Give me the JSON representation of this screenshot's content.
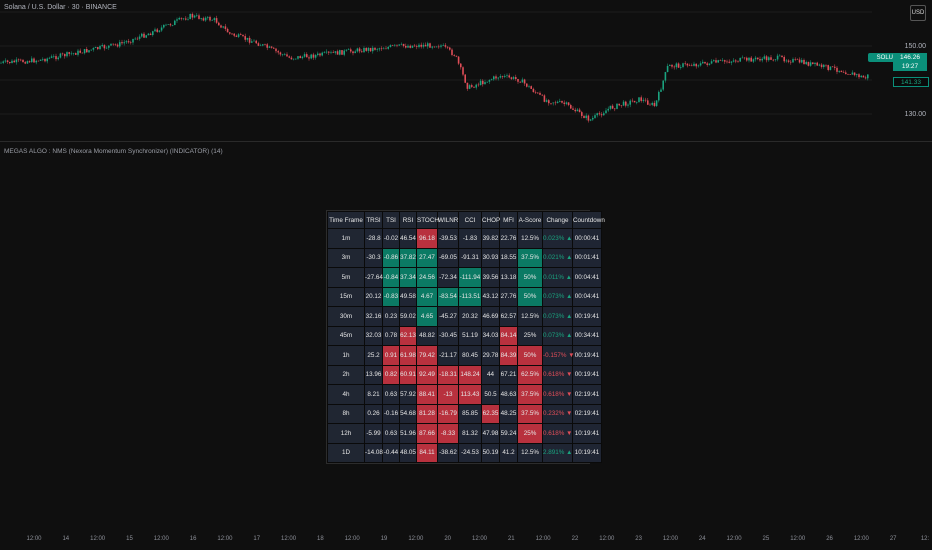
{
  "title": "Solana / U.S. Dollar · 30 · BINANCE",
  "currency": "USD",
  "symbol_tag": "SOLUSD",
  "price_axis": {
    "labels": [
      "150.00",
      "130.00"
    ],
    "last_price": "146.26",
    "countdown": "19:27",
    "other_price": "141.33"
  },
  "indicator_title": "MEGAS ALGO : NMS (Nexora Momentum Synchronizer) (INDICATOR) (14)",
  "colors": {
    "bull": "#1aa37f",
    "bear": "#e04e58",
    "high_cell": "#0b7a64",
    "low_cell": "#b8313e"
  },
  "table": {
    "headers": [
      "Time Frame",
      "TRSI",
      "TSI",
      "RSI",
      "STOCH",
      "WILNR",
      "CCI",
      "CHOP",
      "MFI",
      "A-Score",
      "Change",
      "Countdown"
    ],
    "rows": [
      {
        "cells": [
          "1m",
          "-28.8",
          "-0.02",
          "46.54",
          "96.18",
          "-39.53",
          "-1.83",
          "39.82",
          "22.76",
          "12.5%",
          "0.023% ▲",
          "00:00:41"
        ],
        "hl": {
          "4": "lo"
        },
        "dir": "up"
      },
      {
        "cells": [
          "3m",
          "-30.3",
          "-0.86",
          "37.82",
          "27.47",
          "-69.05",
          "-91.31",
          "30.93",
          "18.55",
          "37.5%",
          "0.021% ▲",
          "00:01:41"
        ],
        "hl": {
          "2": "hi",
          "3": "hi",
          "4": "hi",
          "9": "hi"
        },
        "dir": "up"
      },
      {
        "cells": [
          "5m",
          "-27.64",
          "-0.84",
          "37.34",
          "24.56",
          "-72.34",
          "-111.94",
          "39.56",
          "13.18",
          "50%",
          "0.011% ▲",
          "00:04:41"
        ],
        "hl": {
          "2": "hi",
          "3": "hi",
          "4": "hi",
          "6": "hi",
          "9": "hi"
        },
        "dir": "up"
      },
      {
        "cells": [
          "15m",
          "20.12",
          "-0.83",
          "49.58",
          "4.67",
          "-83.54",
          "-113.51",
          "43.12",
          "27.76",
          "50%",
          "0.073% ▲",
          "00:04:41"
        ],
        "hl": {
          "2": "hi",
          "4": "hi",
          "5": "hi",
          "6": "hi",
          "9": "hi"
        },
        "dir": "up"
      },
      {
        "cells": [
          "30m",
          "32.16",
          "0.23",
          "59.02",
          "4.65",
          "-45.27",
          "20.32",
          "46.69",
          "62.57",
          "12.5%",
          "0.073% ▲",
          "00:19:41"
        ],
        "hl": {
          "4": "hi"
        },
        "dir": "up"
      },
      {
        "cells": [
          "45m",
          "32.03",
          "0.78",
          "62.13",
          "48.82",
          "-30.45",
          "51.19",
          "34.03",
          "84.14",
          "25%",
          "0.073% ▲",
          "00:34:41"
        ],
        "hl": {
          "3": "lo",
          "8": "lo"
        },
        "dir": "up"
      },
      {
        "cells": [
          "1h",
          "25.2",
          "0.91",
          "61.98",
          "79.42",
          "-21.17",
          "80.45",
          "29.78",
          "84.39",
          "50%",
          "-0.157% ▼",
          "00:19:41"
        ],
        "hl": {
          "2": "lo",
          "3": "lo",
          "4": "lo",
          "8": "lo",
          "9": "lo"
        },
        "dir": "dn"
      },
      {
        "cells": [
          "2h",
          "13.96",
          "0.82",
          "60.91",
          "92.49",
          "-18.31",
          "148.24",
          "44",
          "67.21",
          "62.5%",
          "0.618% ▼",
          "00:19:41"
        ],
        "hl": {
          "2": "lo",
          "3": "lo",
          "4": "lo",
          "5": "lo",
          "6": "lo",
          "9": "lo"
        },
        "dir": "dn"
      },
      {
        "cells": [
          "4h",
          "8.21",
          "0.63",
          "57.92",
          "88.41",
          "-13",
          "113.43",
          "50.5",
          "48.63",
          "37.5%",
          "0.618% ▼",
          "02:19:41"
        ],
        "hl": {
          "4": "lo",
          "5": "lo",
          "6": "lo",
          "9": "lo"
        },
        "dir": "dn"
      },
      {
        "cells": [
          "8h",
          "0.26",
          "-0.16",
          "54.68",
          "81.28",
          "-16.79",
          "85.85",
          "62.35",
          "48.25",
          "37.5%",
          "0.232% ▼",
          "02:19:41"
        ],
        "hl": {
          "4": "lo",
          "5": "lo",
          "7": "lo",
          "9": "lo"
        },
        "dir": "dn"
      },
      {
        "cells": [
          "12h",
          "-5.99",
          "0.63",
          "51.96",
          "87.66",
          "-8.33",
          "81.32",
          "47.98",
          "59.24",
          "25%",
          "0.618% ▼",
          "10:19:41"
        ],
        "hl": {
          "4": "lo",
          "5": "lo",
          "9": "lo"
        },
        "dir": "dn"
      },
      {
        "cells": [
          "1D",
          "-14.08",
          "-0.44",
          "48.05",
          "84.11",
          "-38.62",
          "-24.53",
          "50.19",
          "41.2",
          "12.5%",
          "2.891% ▲",
          "10:19:41"
        ],
        "hl": {
          "4": "lo"
        },
        "dir": "up"
      }
    ]
  },
  "time_axis": [
    "12:00",
    "14",
    "12:00",
    "15",
    "12:00",
    "16",
    "12:00",
    "17",
    "12:00",
    "18",
    "12:00",
    "19",
    "12:00",
    "20",
    "12:00",
    "21",
    "12:00",
    "22",
    "12:00",
    "23",
    "12:00",
    "24",
    "12:00",
    "25",
    "12:00",
    "26",
    "12:00",
    "27",
    "12:"
  ]
}
